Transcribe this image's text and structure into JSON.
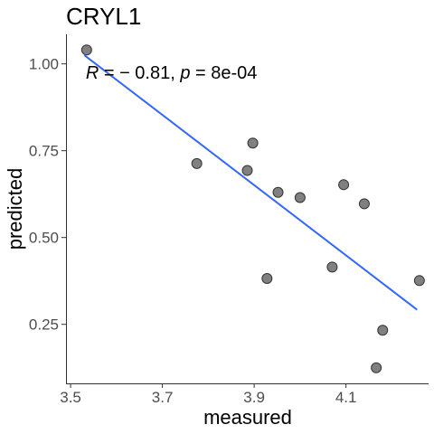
{
  "chart_data": {
    "type": "scatter",
    "title": "CRYL1",
    "xlabel": "measured",
    "ylabel": "predicted",
    "xlim": [
      3.49,
      4.28
    ],
    "ylim": [
      0.08,
      1.085
    ],
    "x_ticks": [
      3.5,
      3.7,
      3.9,
      4.1
    ],
    "x_tick_labels": [
      "3.5",
      "3.7",
      "3.9",
      "4.1"
    ],
    "y_ticks": [
      0.25,
      0.5,
      0.75,
      1.0
    ],
    "y_tick_labels": [
      "0.25",
      "0.50",
      "0.75",
      "1.00"
    ],
    "grid": false,
    "points": [
      {
        "x": 3.535,
        "y": 1.04
      },
      {
        "x": 3.775,
        "y": 0.713
      },
      {
        "x": 3.885,
        "y": 0.693
      },
      {
        "x": 3.897,
        "y": 0.772
      },
      {
        "x": 3.928,
        "y": 0.382
      },
      {
        "x": 3.952,
        "y": 0.63
      },
      {
        "x": 4.0,
        "y": 0.615
      },
      {
        "x": 4.07,
        "y": 0.415
      },
      {
        "x": 4.095,
        "y": 0.652
      },
      {
        "x": 4.14,
        "y": 0.597
      },
      {
        "x": 4.166,
        "y": 0.125
      },
      {
        "x": 4.18,
        "y": 0.233
      },
      {
        "x": 4.26,
        "y": 0.376
      }
    ],
    "regression_line": {
      "x": [
        3.53,
        4.255
      ],
      "y": [
        1.025,
        0.292
      ],
      "color": "#3366ff"
    },
    "point_color": "#808080",
    "point_edge_color": "#333333",
    "annotation": {
      "R_symbol": "R",
      "R_eq": " = − 0.81, ",
      "p_symbol": "p",
      "p_eq": " = 8e-04",
      "x": 3.535,
      "y": 0.975
    }
  }
}
